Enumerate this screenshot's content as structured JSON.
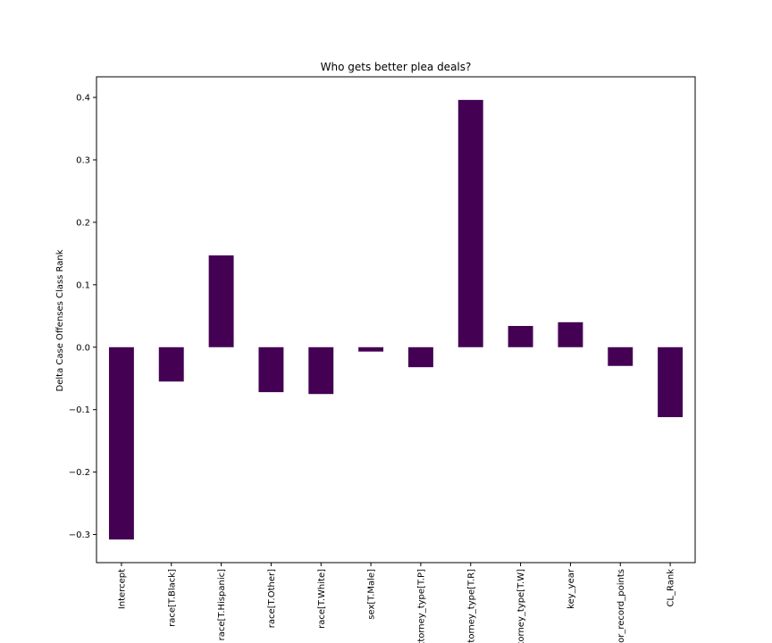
{
  "chart_data": {
    "type": "bar",
    "title": "Who gets better plea deals?",
    "xlabel": "",
    "ylabel": "Delta Case Offenses Class Rank",
    "categories": [
      "Intercept",
      "race[T.Black]",
      "race[T.Hispanic]",
      "race[T.Other]",
      "race[T.White]",
      "sex[T.Male]",
      "attorney_type[T.P]",
      "attorney_type[T.R]",
      "attorney_type[T.W]",
      "key_year",
      "prior_record_points",
      "CL_Rank"
    ],
    "values": [
      -0.308,
      -0.055,
      0.147,
      -0.072,
      -0.075,
      -0.007,
      -0.032,
      0.396,
      0.034,
      0.04,
      -0.03,
      -0.112
    ],
    "ylim": [
      -0.345,
      0.433
    ],
    "yticks": [
      -0.3,
      -0.2,
      -0.1,
      0.0,
      0.1,
      0.2,
      0.3,
      0.4
    ],
    "ytick_labels": [
      "−0.3",
      "−0.2",
      "−0.1",
      "0.0",
      "0.1",
      "0.2",
      "0.3",
      "0.4"
    ],
    "bar_color": "#440154",
    "grid": false,
    "legend": "none"
  }
}
